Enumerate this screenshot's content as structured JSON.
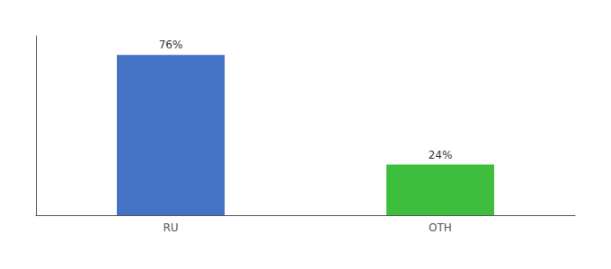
{
  "chart_data": {
    "type": "bar",
    "categories": [
      "RU",
      "OTH"
    ],
    "values": [
      76,
      24
    ],
    "value_labels": [
      "76%",
      "24%"
    ],
    "colors": [
      "#4472c4",
      "#3dbf3d"
    ],
    "ylim": [
      0,
      85
    ],
    "grid": false,
    "data_labels": true,
    "tick_labels": "x"
  }
}
